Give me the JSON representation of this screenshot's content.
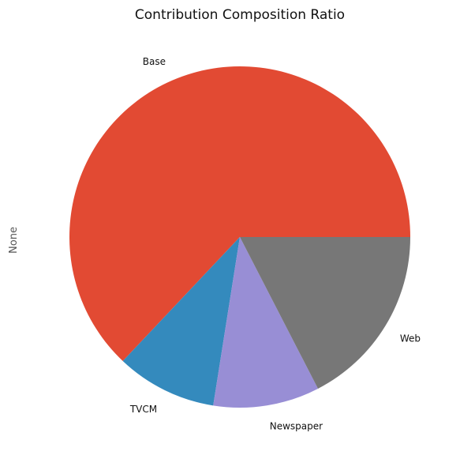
{
  "chart_data": {
    "type": "pie",
    "title": "Contribution Composition Ratio",
    "ylabel": "None",
    "labels": [
      "Base",
      "TVCM",
      "Newspaper",
      "Web"
    ],
    "values": [
      0.6295,
      0.0955,
      0.1008,
      0.1742
    ],
    "colors": [
      "#E24A33",
      "#348ABD",
      "#988ED5",
      "#777777"
    ],
    "start_angle_deg": 0,
    "direction": "counterclockwise",
    "legend": "none"
  }
}
